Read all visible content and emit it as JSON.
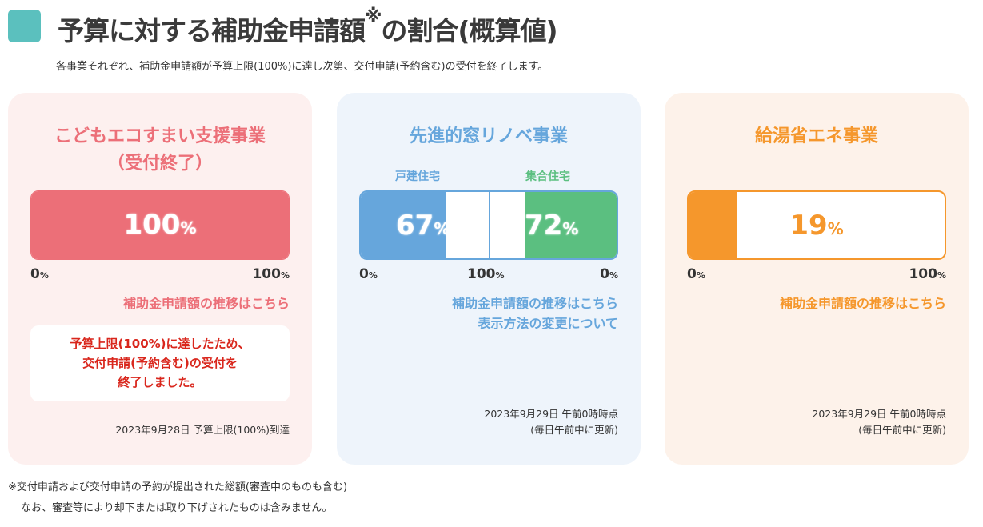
{
  "header": {
    "title": "予算に対する補助金申請額",
    "title_mark": "※",
    "title_tail": "の割合(概算値)",
    "subtitle": "各事業それぞれ、補助金申請額が予算上限(100%)に達し次第、交付申請(予約含む)の受付を終了します。"
  },
  "colors": {
    "accent": "#5bc0be",
    "kodomo": "#ec6f78",
    "window_house": "#66a6dc",
    "window_apartment": "#5bbf80",
    "kyuto": "#f5972c",
    "closed_text": "#d9261c"
  },
  "cards": [
    {
      "title1": "こどもエコすまい支援事業",
      "title2": "（受付終了）",
      "percent": 100,
      "percent_text": "100",
      "unit": "%",
      "tick_min": "0",
      "tick_max": "100",
      "link": "補助金申請額の推移はこちら",
      "closed_notice": [
        "予算上限(100%)に達したため、",
        "交付申請(予約含む)の受付を",
        "終了しました。"
      ],
      "note": "2023年9月28日 予算上限(100%)到達"
    },
    {
      "title1": "先進的窓リノベ事業",
      "label_left": "戸建住宅",
      "label_right": "集合住宅",
      "percent_left": 67,
      "percent_left_text": "67",
      "percent_right": 72,
      "percent_right_text": "72",
      "unit": "%",
      "tick_left": "0",
      "tick_mid": "100",
      "tick_right": "0",
      "link": "補助金申請額の推移はこちら",
      "link2": "表示方法の変更について",
      "note1": "2023年9月29日 午前0時時点",
      "note2": "(毎日午前中に更新)"
    },
    {
      "title1": "給湯省エネ事業",
      "percent": 19,
      "percent_text": "19",
      "unit": "%",
      "tick_min": "0",
      "tick_max": "100",
      "link": "補助金申請額の推移はこちら",
      "note1": "2023年9月29日 午前0時時点",
      "note2": "(毎日午前中に更新)"
    }
  ],
  "footnote": {
    "line1": "※交付申請および交付申請の予約が提出された総額(審査中のものも含む)",
    "line2": "なお、審査等により却下または取り下げされたものは含みません。"
  }
}
